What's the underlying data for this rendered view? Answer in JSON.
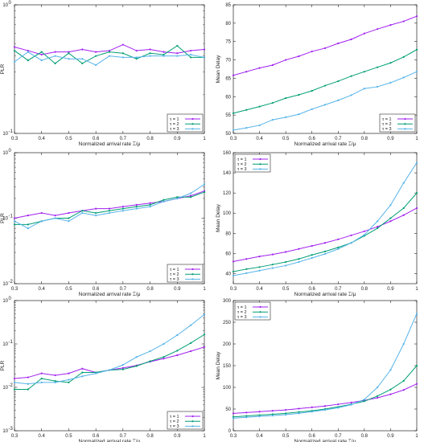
{
  "chart_data": [
    {
      "type": "line",
      "xlabel": "Normalized arrival rate ⌶/μ",
      "ylabel": "PLR",
      "yscale": "log",
      "xlim": [
        0.3,
        1
      ],
      "ylim": [
        0.1,
        1
      ],
      "xticks": [
        "0.3",
        "0.4",
        "0.5",
        "0.6",
        "0.7",
        "0.8",
        "0.9",
        "1"
      ],
      "ytick_labels": [
        {
          "base": "10",
          "exp": "-1"
        },
        {
          "base": "10",
          "exp": "0"
        }
      ],
      "legend": "bottom-right",
      "x": [
        0.3,
        0.35,
        0.4,
        0.45,
        0.5,
        0.55,
        0.6,
        0.65,
        0.7,
        0.75,
        0.8,
        0.85,
        0.9,
        0.95,
        1.0
      ],
      "series": [
        {
          "name": "τ = 1",
          "color": "#a020f0",
          "values": [
            0.47,
            0.44,
            0.41,
            0.43,
            0.43,
            0.45,
            0.43,
            0.44,
            0.49,
            0.44,
            0.45,
            0.43,
            0.42,
            0.44,
            0.45
          ]
        },
        {
          "name": "τ = 2",
          "color": "#009e73",
          "values": [
            0.44,
            0.37,
            0.43,
            0.35,
            0.42,
            0.35,
            0.4,
            0.43,
            0.42,
            0.38,
            0.42,
            0.41,
            0.48,
            0.39,
            0.39
          ]
        },
        {
          "name": "τ = 3",
          "color": "#56b4e9",
          "values": [
            0.36,
            0.43,
            0.37,
            0.4,
            0.38,
            0.38,
            0.34,
            0.4,
            0.39,
            0.39,
            0.4,
            0.4,
            0.4,
            0.41,
            0.39
          ]
        }
      ]
    },
    {
      "type": "line",
      "xlabel": "Normalized arrival rate ⌶/μ",
      "ylabel": "Mean Delay",
      "xlim": [
        0.3,
        1
      ],
      "ylim": [
        50,
        85
      ],
      "xticks": [
        "0.3",
        "0.4",
        "0.5",
        "0.6",
        "0.7",
        "0.8",
        "0.9",
        "1"
      ],
      "yticks": [
        "50",
        "55",
        "60",
        "65",
        "70",
        "75",
        "80",
        "85"
      ],
      "legend": "bottom-right",
      "x": [
        0.3,
        0.35,
        0.4,
        0.45,
        0.5,
        0.55,
        0.6,
        0.65,
        0.7,
        0.75,
        0.8,
        0.85,
        0.9,
        0.95,
        1.0
      ],
      "series": [
        {
          "name": "τ = 1",
          "color": "#a020f0",
          "values": [
            65.8,
            66.8,
            67.8,
            68.6,
            70.0,
            71.0,
            72.3,
            73.2,
            74.5,
            75.6,
            77.2,
            78.4,
            79.5,
            80.5,
            81.9
          ]
        },
        {
          "name": "τ = 2",
          "color": "#009e73",
          "values": [
            55.5,
            56.4,
            57.3,
            58.3,
            59.6,
            60.5,
            61.6,
            63.0,
            64.2,
            65.6,
            66.8,
            68.0,
            69.2,
            70.8,
            72.8
          ]
        },
        {
          "name": "τ = 3",
          "color": "#56b4e9",
          "values": [
            50.9,
            51.5,
            52.2,
            53.7,
            54.4,
            55.2,
            56.6,
            57.8,
            59.0,
            60.4,
            62.2,
            62.7,
            63.8,
            65.2,
            66.8
          ]
        }
      ]
    },
    {
      "type": "line",
      "xlabel": "Normalized arrival rate ⌶/μ",
      "ylabel": "PLR",
      "yscale": "log",
      "xlim": [
        0.3,
        1
      ],
      "ylim": [
        0.01,
        1
      ],
      "xticks": [
        "0.3",
        "0.4",
        "0.5",
        "0.6",
        "0.7",
        "0.8",
        "0.9",
        "1"
      ],
      "ytick_labels": [
        {
          "base": "10",
          "exp": "-2"
        },
        {
          "base": "10",
          "exp": "-1"
        },
        {
          "base": "10",
          "exp": "0"
        }
      ],
      "legend": "bottom-right",
      "x": [
        0.3,
        0.35,
        0.4,
        0.45,
        0.5,
        0.55,
        0.6,
        0.65,
        0.7,
        0.75,
        0.8,
        0.85,
        0.9,
        0.95,
        1.0
      ],
      "series": [
        {
          "name": "τ = 1",
          "color": "#a020f0",
          "values": [
            0.1,
            0.11,
            0.12,
            0.11,
            0.12,
            0.13,
            0.14,
            0.14,
            0.15,
            0.16,
            0.17,
            0.18,
            0.2,
            0.22,
            0.26
          ]
        },
        {
          "name": "τ = 2",
          "color": "#009e73",
          "values": [
            0.08,
            0.08,
            0.09,
            0.1,
            0.1,
            0.13,
            0.12,
            0.13,
            0.14,
            0.15,
            0.16,
            0.19,
            0.21,
            0.21,
            0.25
          ]
        },
        {
          "name": "τ = 3",
          "color": "#56b4e9",
          "values": [
            0.09,
            0.07,
            0.09,
            0.1,
            0.09,
            0.12,
            0.11,
            0.12,
            0.13,
            0.14,
            0.15,
            0.18,
            0.2,
            0.24,
            0.33
          ]
        }
      ]
    },
    {
      "type": "line",
      "xlabel": "Normalized arrival rate ⌶/μ",
      "ylabel": "Mean Delay",
      "xlim": [
        0.3,
        1
      ],
      "ylim": [
        30,
        160
      ],
      "xticks": [
        "0.3",
        "0.4",
        "0.5",
        "0.6",
        "0.7",
        "0.8",
        "0.9",
        "1"
      ],
      "yticks": [
        "40",
        "60",
        "80",
        "100",
        "120",
        "140",
        "160"
      ],
      "legend": "top-left",
      "x": [
        0.3,
        0.35,
        0.4,
        0.45,
        0.5,
        0.55,
        0.6,
        0.65,
        0.7,
        0.75,
        0.8,
        0.85,
        0.9,
        0.95,
        1.0
      ],
      "series": [
        {
          "name": "τ = 1",
          "color": "#a020f0",
          "values": [
            52,
            54.5,
            57,
            59,
            61.5,
            64.5,
            67.5,
            70.5,
            74,
            78,
            82,
            86.5,
            92,
            98,
            105
          ]
        },
        {
          "name": "τ = 2",
          "color": "#009e73",
          "values": [
            42,
            44.5,
            46.5,
            49,
            51.5,
            54.5,
            58.5,
            62,
            66,
            70.5,
            77.5,
            85,
            95,
            105,
            120
          ]
        },
        {
          "name": "τ = 3",
          "color": "#56b4e9",
          "values": [
            38,
            40.5,
            43,
            45.5,
            48,
            51.5,
            55.5,
            59.5,
            64.5,
            70.5,
            78.5,
            92,
            108,
            130,
            150
          ]
        }
      ]
    },
    {
      "type": "line",
      "xlabel": "Normalized arrival rate ⌶/μ",
      "ylabel": "PLR",
      "yscale": "log",
      "xlim": [
        0.3,
        1
      ],
      "ylim": [
        0.001,
        1
      ],
      "xticks": [
        "0.3",
        "0.4",
        "0.5",
        "0.6",
        "0.7",
        "0.8",
        "0.9",
        "1"
      ],
      "ytick_labels": [
        {
          "base": "10",
          "exp": "-3"
        },
        {
          "base": "10",
          "exp": "-2"
        },
        {
          "base": "10",
          "exp": "-1"
        },
        {
          "base": "10",
          "exp": "0"
        }
      ],
      "legend": "bottom-right",
      "x": [
        0.3,
        0.35,
        0.4,
        0.45,
        0.5,
        0.55,
        0.6,
        0.65,
        0.7,
        0.75,
        0.8,
        0.85,
        0.9,
        0.95,
        1.0
      ],
      "series": [
        {
          "name": "τ = 1",
          "color": "#a020f0",
          "values": [
            0.016,
            0.017,
            0.021,
            0.019,
            0.021,
            0.027,
            0.022,
            0.025,
            0.028,
            0.032,
            0.039,
            0.046,
            0.055,
            0.068,
            0.085
          ]
        },
        {
          "name": "τ = 2",
          "color": "#009e73",
          "values": [
            0.009,
            0.009,
            0.016,
            0.014,
            0.013,
            0.022,
            0.022,
            0.025,
            0.026,
            0.031,
            0.04,
            0.05,
            0.07,
            0.105,
            0.165
          ]
        },
        {
          "name": "τ = 3",
          "color": "#56b4e9",
          "values": [
            0.013,
            0.012,
            0.013,
            0.013,
            0.015,
            0.018,
            0.021,
            0.025,
            0.033,
            0.05,
            0.068,
            0.1,
            0.16,
            0.27,
            0.48
          ]
        }
      ]
    },
    {
      "type": "line",
      "xlabel": "Normalized arrival rate ⌶/μ",
      "ylabel": "Mean Delay",
      "xlim": [
        0.3,
        1
      ],
      "ylim": [
        0,
        300
      ],
      "xticks": [
        "0.3",
        "0.4",
        "0.5",
        "0.6",
        "0.7",
        "0.8",
        "0.9",
        "1"
      ],
      "yticks": [
        "0",
        "50",
        "100",
        "150",
        "200",
        "250",
        "300"
      ],
      "legend": "top-left",
      "x": [
        0.3,
        0.35,
        0.4,
        0.45,
        0.5,
        0.55,
        0.6,
        0.65,
        0.7,
        0.75,
        0.8,
        0.85,
        0.9,
        0.95,
        1.0
      ],
      "series": [
        {
          "name": "τ = 1",
          "color": "#a020f0",
          "values": [
            40,
            42,
            44,
            46,
            48,
            51,
            54,
            57,
            61,
            65,
            70,
            76,
            84,
            94,
            108
          ]
        },
        {
          "name": "τ = 2",
          "color": "#009e73",
          "values": [
            32,
            34,
            36,
            38,
            40,
            43,
            46,
            50,
            55,
            61,
            68,
            80,
            95,
            115,
            150
          ]
        },
        {
          "name": "τ = 3",
          "color": "#56b4e9",
          "values": [
            29,
            31,
            33,
            35,
            37,
            40,
            44,
            48,
            53,
            60,
            72,
            100,
            140,
            200,
            270
          ]
        }
      ]
    }
  ]
}
